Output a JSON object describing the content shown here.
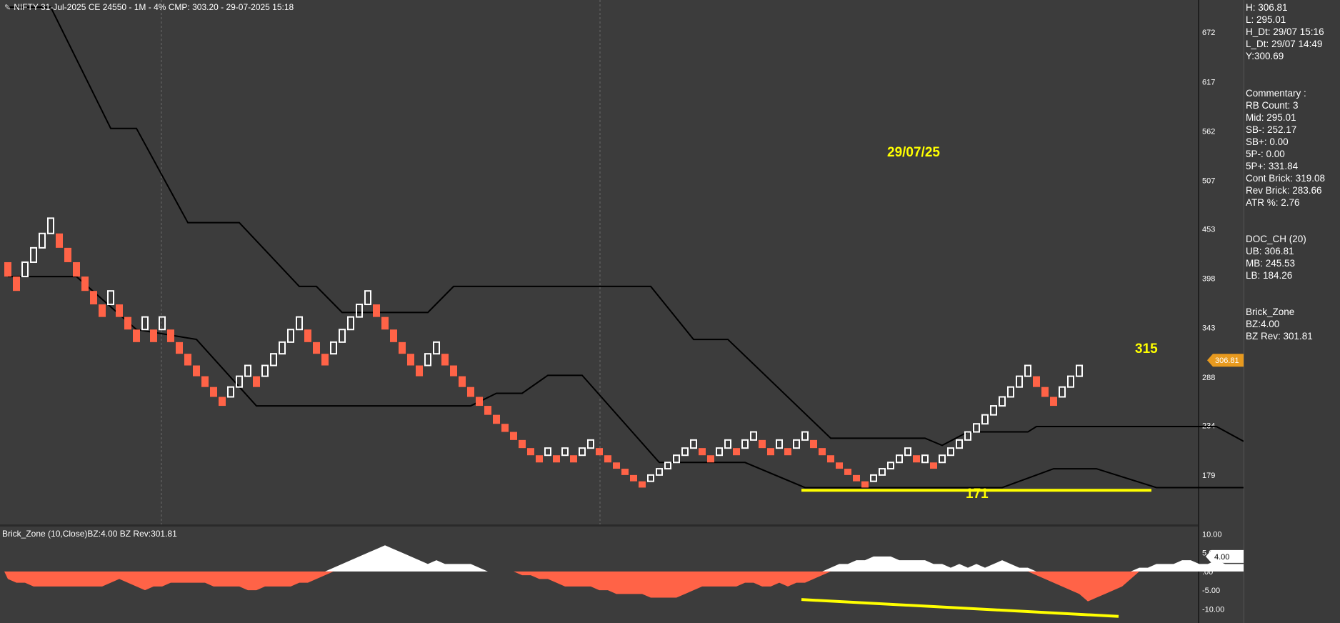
{
  "header": {
    "icon": "pencil-icon",
    "title": "NIFTY 31-Jul-2025 CE 24550 - 1M - 4% CMP: 303.20 - 29-07-2025 15:18"
  },
  "indicator_title": "Brick_Zone (10,Close)BZ:4.00 BZ Rev:301.81",
  "price_badge": "306.81",
  "oscillator_badge": "4.00",
  "annotations": [
    {
      "id": "date",
      "text": "29/07/25"
    },
    {
      "id": "high",
      "text": "315"
    },
    {
      "id": "low",
      "text": "171"
    }
  ],
  "info_panel": {
    "summary": [
      "H: 306.81",
      "L: 295.01",
      "H_Dt: 29/07 15:16",
      "L_Dt: 29/07 14:49",
      "Y:300.69"
    ],
    "commentary": [
      "Commentary :",
      "RB Count: 3",
      "Mid: 295.01",
      "SB-: 252.17",
      "SB+: 0.00",
      "5P-: 0.00",
      "5P+: 331.84",
      "Cont Brick: 319.08",
      "Rev Brick: 283.66",
      "ATR %: 2.76"
    ],
    "doc_ch": [
      "DOC_CH (20)",
      "UB: 306.81",
      "MB: 245.53",
      "LB: 184.26"
    ],
    "brick_zone": [
      "Brick_Zone",
      "BZ:4.00",
      "BZ Rev: 301.81"
    ]
  },
  "colors": {
    "background": "#3c3c3c",
    "up_brick": "#ffffff",
    "down_brick": "#ff6347",
    "channel": "#000000",
    "highlight": "#ffff00",
    "badge": "#e89a1e"
  },
  "chart_data": [
    {
      "type": "renko",
      "title": "NIFTY 31-Jul-2025 CE 24550 - 1M - 4% CMP: 303.20 - 29-07-2025 15:18",
      "y_ticks": [
        672,
        617,
        562,
        507,
        453,
        398,
        343,
        288,
        234,
        179
      ],
      "ylim": [
        124,
        700
      ],
      "brick_size_pct": 4,
      "bricks": [
        {
          "d": "D",
          "lo": 400,
          "hi": 416
        },
        {
          "d": "D",
          "lo": 384,
          "hi": 400
        },
        {
          "d": "U",
          "lo": 400,
          "hi": 416
        },
        {
          "d": "U",
          "lo": 416,
          "hi": 432
        },
        {
          "d": "U",
          "lo": 432,
          "hi": 448
        },
        {
          "d": "U",
          "lo": 448,
          "hi": 465
        },
        {
          "d": "D",
          "lo": 432,
          "hi": 448
        },
        {
          "d": "D",
          "lo": 416,
          "hi": 432
        },
        {
          "d": "D",
          "lo": 400,
          "hi": 416
        },
        {
          "d": "D",
          "lo": 384,
          "hi": 400
        },
        {
          "d": "D",
          "lo": 369,
          "hi": 384
        },
        {
          "d": "D",
          "lo": 355,
          "hi": 369
        },
        {
          "d": "U",
          "lo": 369,
          "hi": 384
        },
        {
          "d": "D",
          "lo": 355,
          "hi": 369
        },
        {
          "d": "D",
          "lo": 341,
          "hi": 355
        },
        {
          "d": "D",
          "lo": 327,
          "hi": 341
        },
        {
          "d": "U",
          "lo": 341,
          "hi": 355
        },
        {
          "d": "D",
          "lo": 327,
          "hi": 341
        },
        {
          "d": "U",
          "lo": 341,
          "hi": 355
        },
        {
          "d": "D",
          "lo": 327,
          "hi": 341
        },
        {
          "d": "D",
          "lo": 314,
          "hi": 327
        },
        {
          "d": "D",
          "lo": 301,
          "hi": 314
        },
        {
          "d": "D",
          "lo": 289,
          "hi": 301
        },
        {
          "d": "D",
          "lo": 277,
          "hi": 289
        },
        {
          "d": "D",
          "lo": 266,
          "hi": 277
        },
        {
          "d": "D",
          "lo": 256,
          "hi": 266
        },
        {
          "d": "U",
          "lo": 266,
          "hi": 277
        },
        {
          "d": "U",
          "lo": 277,
          "hi": 289
        },
        {
          "d": "U",
          "lo": 289,
          "hi": 301
        },
        {
          "d": "D",
          "lo": 277,
          "hi": 289
        },
        {
          "d": "U",
          "lo": 289,
          "hi": 301
        },
        {
          "d": "U",
          "lo": 301,
          "hi": 314
        },
        {
          "d": "U",
          "lo": 314,
          "hi": 327
        },
        {
          "d": "U",
          "lo": 327,
          "hi": 341
        },
        {
          "d": "U",
          "lo": 341,
          "hi": 355
        },
        {
          "d": "D",
          "lo": 327,
          "hi": 341
        },
        {
          "d": "D",
          "lo": 314,
          "hi": 327
        },
        {
          "d": "D",
          "lo": 301,
          "hi": 314
        },
        {
          "d": "U",
          "lo": 314,
          "hi": 327
        },
        {
          "d": "U",
          "lo": 327,
          "hi": 341
        },
        {
          "d": "U",
          "lo": 341,
          "hi": 355
        },
        {
          "d": "U",
          "lo": 355,
          "hi": 369
        },
        {
          "d": "U",
          "lo": 369,
          "hi": 384
        },
        {
          "d": "D",
          "lo": 355,
          "hi": 369
        },
        {
          "d": "D",
          "lo": 341,
          "hi": 355
        },
        {
          "d": "D",
          "lo": 327,
          "hi": 341
        },
        {
          "d": "D",
          "lo": 314,
          "hi": 327
        },
        {
          "d": "D",
          "lo": 301,
          "hi": 314
        },
        {
          "d": "D",
          "lo": 289,
          "hi": 301
        },
        {
          "d": "U",
          "lo": 301,
          "hi": 314
        },
        {
          "d": "U",
          "lo": 314,
          "hi": 327
        },
        {
          "d": "D",
          "lo": 301,
          "hi": 314
        },
        {
          "d": "D",
          "lo": 289,
          "hi": 301
        },
        {
          "d": "D",
          "lo": 277,
          "hi": 289
        },
        {
          "d": "D",
          "lo": 266,
          "hi": 277
        },
        {
          "d": "D",
          "lo": 256,
          "hi": 266
        },
        {
          "d": "D",
          "lo": 246,
          "hi": 256
        },
        {
          "d": "D",
          "lo": 236,
          "hi": 246
        },
        {
          "d": "D",
          "lo": 227,
          "hi": 236
        },
        {
          "d": "D",
          "lo": 218,
          "hi": 227
        },
        {
          "d": "D",
          "lo": 209,
          "hi": 218
        },
        {
          "d": "D",
          "lo": 201,
          "hi": 209
        },
        {
          "d": "D",
          "lo": 193,
          "hi": 201
        },
        {
          "d": "U",
          "lo": 201,
          "hi": 209
        },
        {
          "d": "D",
          "lo": 193,
          "hi": 201
        },
        {
          "d": "U",
          "lo": 201,
          "hi": 209
        },
        {
          "d": "D",
          "lo": 193,
          "hi": 201
        },
        {
          "d": "U",
          "lo": 201,
          "hi": 209
        },
        {
          "d": "U",
          "lo": 209,
          "hi": 218
        },
        {
          "d": "D",
          "lo": 201,
          "hi": 209
        },
        {
          "d": "D",
          "lo": 193,
          "hi": 201
        },
        {
          "d": "D",
          "lo": 186,
          "hi": 193
        },
        {
          "d": "D",
          "lo": 179,
          "hi": 186
        },
        {
          "d": "D",
          "lo": 172,
          "hi": 179
        },
        {
          "d": "D",
          "lo": 165,
          "hi": 172
        },
        {
          "d": "U",
          "lo": 172,
          "hi": 179
        },
        {
          "d": "U",
          "lo": 179,
          "hi": 186
        },
        {
          "d": "U",
          "lo": 186,
          "hi": 193
        },
        {
          "d": "U",
          "lo": 193,
          "hi": 201
        },
        {
          "d": "U",
          "lo": 201,
          "hi": 209
        },
        {
          "d": "U",
          "lo": 209,
          "hi": 218
        },
        {
          "d": "D",
          "lo": 201,
          "hi": 209
        },
        {
          "d": "D",
          "lo": 193,
          "hi": 201
        },
        {
          "d": "U",
          "lo": 201,
          "hi": 209
        },
        {
          "d": "U",
          "lo": 209,
          "hi": 218
        },
        {
          "d": "D",
          "lo": 201,
          "hi": 209
        },
        {
          "d": "U",
          "lo": 209,
          "hi": 218
        },
        {
          "d": "U",
          "lo": 218,
          "hi": 227
        },
        {
          "d": "D",
          "lo": 209,
          "hi": 218
        },
        {
          "d": "D",
          "lo": 201,
          "hi": 209
        },
        {
          "d": "U",
          "lo": 209,
          "hi": 218
        },
        {
          "d": "D",
          "lo": 201,
          "hi": 209
        },
        {
          "d": "U",
          "lo": 209,
          "hi": 218
        },
        {
          "d": "U",
          "lo": 218,
          "hi": 227
        },
        {
          "d": "D",
          "lo": 209,
          "hi": 218
        },
        {
          "d": "D",
          "lo": 201,
          "hi": 209
        },
        {
          "d": "D",
          "lo": 193,
          "hi": 201
        },
        {
          "d": "D",
          "lo": 186,
          "hi": 193
        },
        {
          "d": "D",
          "lo": 179,
          "hi": 186
        },
        {
          "d": "D",
          "lo": 172,
          "hi": 179
        },
        {
          "d": "D",
          "lo": 165,
          "hi": 172
        },
        {
          "d": "U",
          "lo": 172,
          "hi": 179
        },
        {
          "d": "U",
          "lo": 179,
          "hi": 186
        },
        {
          "d": "U",
          "lo": 186,
          "hi": 193
        },
        {
          "d": "U",
          "lo": 193,
          "hi": 201
        },
        {
          "d": "U",
          "lo": 201,
          "hi": 209
        },
        {
          "d": "D",
          "lo": 193,
          "hi": 201
        },
        {
          "d": "U",
          "lo": 193,
          "hi": 201
        },
        {
          "d": "D",
          "lo": 186,
          "hi": 193
        },
        {
          "d": "U",
          "lo": 193,
          "hi": 201
        },
        {
          "d": "U",
          "lo": 201,
          "hi": 209
        },
        {
          "d": "U",
          "lo": 209,
          "hi": 218
        },
        {
          "d": "U",
          "lo": 218,
          "hi": 227
        },
        {
          "d": "U",
          "lo": 227,
          "hi": 236
        },
        {
          "d": "U",
          "lo": 236,
          "hi": 246
        },
        {
          "d": "U",
          "lo": 246,
          "hi": 256
        },
        {
          "d": "U",
          "lo": 256,
          "hi": 266
        },
        {
          "d": "U",
          "lo": 266,
          "hi": 277
        },
        {
          "d": "U",
          "lo": 277,
          "hi": 289
        },
        {
          "d": "U",
          "lo": 289,
          "hi": 301
        },
        {
          "d": "D",
          "lo": 277,
          "hi": 289
        },
        {
          "d": "D",
          "lo": 266,
          "hi": 277
        },
        {
          "d": "D",
          "lo": 256,
          "hi": 266
        },
        {
          "d": "U",
          "lo": 266,
          "hi": 277
        },
        {
          "d": "U",
          "lo": 277,
          "hi": 289
        },
        {
          "d": "U",
          "lo": 289,
          "hi": 301
        }
      ],
      "channel_upper": [
        [
          0,
          700
        ],
        [
          5,
          700
        ],
        [
          12,
          565
        ],
        [
          15,
          565
        ],
        [
          21,
          460
        ],
        [
          27,
          460
        ],
        [
          34,
          389
        ],
        [
          36,
          389
        ],
        [
          39,
          360
        ],
        [
          49,
          360
        ],
        [
          52,
          389
        ],
        [
          75,
          389
        ],
        [
          80,
          330
        ],
        [
          84,
          330
        ],
        [
          96,
          220
        ],
        [
          107,
          220
        ],
        [
          109,
          212
        ],
        [
          112,
          227
        ],
        [
          119,
          227
        ],
        [
          120,
          233
        ],
        [
          141,
          233
        ],
        [
          146,
          207
        ],
        [
          150,
          212
        ],
        [
          166,
          301
        ],
        [
          168,
          301
        ]
      ],
      "channel_lower": [
        [
          0,
          400
        ],
        [
          8,
          400
        ],
        [
          15,
          341
        ],
        [
          22,
          330
        ],
        [
          29,
          256
        ],
        [
          54,
          256
        ],
        [
          57,
          270
        ],
        [
          60,
          270
        ],
        [
          63,
          290
        ],
        [
          67,
          290
        ],
        [
          76,
          193
        ],
        [
          86,
          193
        ],
        [
          93,
          165
        ],
        [
          116,
          165
        ],
        [
          122,
          186
        ],
        [
          127,
          186
        ],
        [
          134,
          165
        ],
        [
          154,
          165
        ],
        [
          160,
          186
        ],
        [
          168,
          186
        ]
      ],
      "support_line": {
        "x": [
          93,
          133
        ],
        "y": 162
      }
    },
    {
      "type": "area",
      "title": "Brick_Zone (10,Close)BZ:4.00 BZ Rev:301.81",
      "y_ticks": [
        10.0,
        5.0,
        0.0,
        -5.0,
        -10.0
      ],
      "y_tick_labels": [
        "10.00",
        "5.00",
        ".00",
        "-5.00",
        "-10.00"
      ],
      "ylim": [
        -13,
        12
      ],
      "values": [
        -2,
        -3,
        -3,
        -4,
        -4,
        -4,
        -4,
        -4,
        -4,
        -4,
        -4,
        -4,
        -3,
        -2,
        -3,
        -4,
        -5,
        -4,
        -4,
        -3,
        -3,
        -3,
        -3,
        -3,
        -4,
        -4,
        -4,
        -4,
        -5,
        -5,
        -4,
        -4,
        -4,
        -4,
        -3,
        -3,
        -2,
        -1,
        1,
        2,
        3,
        4,
        5,
        6,
        7,
        6,
        5,
        4,
        3,
        2,
        3,
        2,
        2,
        2,
        2,
        1,
        0,
        0,
        0,
        0,
        -1,
        -1,
        -2,
        -2,
        -3,
        -4,
        -4,
        -4,
        -4,
        -5,
        -5,
        -6,
        -6,
        -6,
        -6,
        -7,
        -7,
        -7,
        -7,
        -6,
        -5,
        -4,
        -4,
        -4,
        -4,
        -4,
        -3,
        -3,
        -4,
        -4,
        -3,
        -4,
        -3,
        -3,
        -2,
        -1,
        1,
        2,
        2,
        3,
        3,
        4,
        4,
        4,
        3,
        3,
        3,
        3,
        2,
        2,
        1,
        2,
        1,
        2,
        1,
        2,
        3,
        2,
        1,
        1,
        -1,
        -2,
        -3,
        -4,
        -5,
        -6,
        -8,
        -7,
        -6,
        -5,
        -4,
        -2,
        1,
        1,
        2,
        2,
        2,
        3,
        3,
        2,
        2,
        3,
        2,
        2,
        2,
        2,
        2,
        2,
        3,
        4,
        4,
        4,
        4,
        4,
        5,
        5,
        6,
        6,
        7,
        8,
        8,
        9,
        9,
        8,
        7,
        6,
        5,
        4
      ],
      "trendline": {
        "x": [
          93,
          130
        ],
        "y": [
          -7.5,
          -12
        ]
      }
    }
  ]
}
